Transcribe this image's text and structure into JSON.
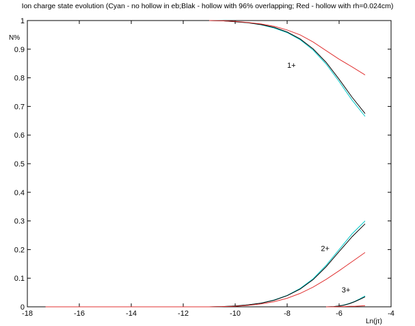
{
  "chart_data": {
    "type": "line",
    "title": "Ion charge state evolution (Cyan - no hollow in eb;Blak - hollow with 96% overlapping; Red - hollow with rh=0.024cm)",
    "xlabel": "Ln(jτ)",
    "ylabel": "N%",
    "xlim": [
      -18,
      -4
    ],
    "ylim": [
      0,
      1
    ],
    "xticks": [
      -18,
      -16,
      -14,
      -12,
      -10,
      -8,
      -6,
      -4
    ],
    "yticks": [
      0,
      0.1,
      0.2,
      0.3,
      0.4,
      0.5,
      0.6,
      0.7,
      0.8,
      0.9,
      1
    ],
    "grid": false,
    "colors": {
      "cyan": "#00c8c8",
      "black": "#000000",
      "red": "#e03030"
    },
    "annotations": [
      {
        "text": "1+",
        "x": -8.0,
        "y": 0.835
      },
      {
        "text": "2+",
        "x": -6.7,
        "y": 0.195
      },
      {
        "text": "3+",
        "x": -5.9,
        "y": 0.05
      }
    ],
    "series": [
      {
        "charge": "1+",
        "color": "cyan",
        "x": [
          -11,
          -10.5,
          -10,
          -9.5,
          -9,
          -8.5,
          -8,
          -7.5,
          -7,
          -6.5,
          -6,
          -5.5,
          -5
        ],
        "y": [
          1.0,
          0.999,
          0.996,
          0.992,
          0.985,
          0.974,
          0.958,
          0.933,
          0.897,
          0.848,
          0.787,
          0.722,
          0.665
        ]
      },
      {
        "charge": "1+",
        "color": "black",
        "x": [
          -11,
          -10.5,
          -10,
          -9.5,
          -9,
          -8.5,
          -8,
          -7.5,
          -7,
          -6.5,
          -6,
          -5.5,
          -5
        ],
        "y": [
          1.0,
          0.999,
          0.996,
          0.992,
          0.986,
          0.976,
          0.96,
          0.936,
          0.901,
          0.854,
          0.795,
          0.732,
          0.675
        ]
      },
      {
        "charge": "1+",
        "color": "red",
        "x": [
          -11,
          -10.5,
          -10,
          -9.5,
          -9,
          -8.5,
          -8,
          -7.5,
          -7,
          -6.5,
          -6,
          -5.5,
          -5
        ],
        "y": [
          1.0,
          0.999,
          0.997,
          0.993,
          0.988,
          0.98,
          0.967,
          0.95,
          0.925,
          0.895,
          0.865,
          0.838,
          0.81
        ]
      },
      {
        "charge": "2+",
        "color": "cyan",
        "x": [
          -17.3,
          -13,
          -11,
          -10.5,
          -10,
          -9.5,
          -9,
          -8.5,
          -8,
          -7.5,
          -7,
          -6.5,
          -6,
          -5.5,
          -5
        ],
        "y": [
          0,
          0,
          0,
          0.001,
          0.003,
          0.007,
          0.013,
          0.024,
          0.04,
          0.064,
          0.098,
          0.145,
          0.2,
          0.255,
          0.3
        ]
      },
      {
        "charge": "2+",
        "color": "black",
        "x": [
          -17.3,
          -13,
          -11,
          -10.5,
          -10,
          -9.5,
          -9,
          -8.5,
          -8,
          -7.5,
          -7,
          -6.5,
          -6,
          -5.5,
          -5
        ],
        "y": [
          0,
          0,
          0,
          0.001,
          0.003,
          0.007,
          0.013,
          0.023,
          0.039,
          0.062,
          0.095,
          0.14,
          0.193,
          0.245,
          0.29
        ]
      },
      {
        "charge": "2+",
        "color": "red",
        "x": [
          -17.3,
          -13,
          -11,
          -10.5,
          -10,
          -9.5,
          -9,
          -8.5,
          -8,
          -7.5,
          -7,
          -6.5,
          -6,
          -5.5,
          -5
        ],
        "y": [
          0,
          0,
          0,
          0.001,
          0.002,
          0.005,
          0.01,
          0.018,
          0.03,
          0.047,
          0.069,
          0.096,
          0.126,
          0.158,
          0.19
        ]
      },
      {
        "charge": "3+",
        "color": "cyan",
        "x": [
          -6.5,
          -6.2,
          -6,
          -5.8,
          -5.6,
          -5.4,
          -5.2,
          -5
        ],
        "y": [
          0,
          0.001,
          0.003,
          0.007,
          0.012,
          0.019,
          0.028,
          0.038
        ]
      },
      {
        "charge": "3+",
        "color": "black",
        "x": [
          -6.5,
          -6.2,
          -6,
          -5.8,
          -5.6,
          -5.4,
          -5.2,
          -5
        ],
        "y": [
          0,
          0.001,
          0.003,
          0.006,
          0.011,
          0.018,
          0.026,
          0.035
        ]
      },
      {
        "charge": "3+",
        "color": "red",
        "x": [
          -6.5,
          -6.2,
          -6,
          -5.8,
          -5.6,
          -5.4,
          -5.2,
          -5
        ],
        "y": [
          0,
          0,
          0.001,
          0.001,
          0.002,
          0.002,
          0.003,
          0.004
        ]
      }
    ]
  }
}
